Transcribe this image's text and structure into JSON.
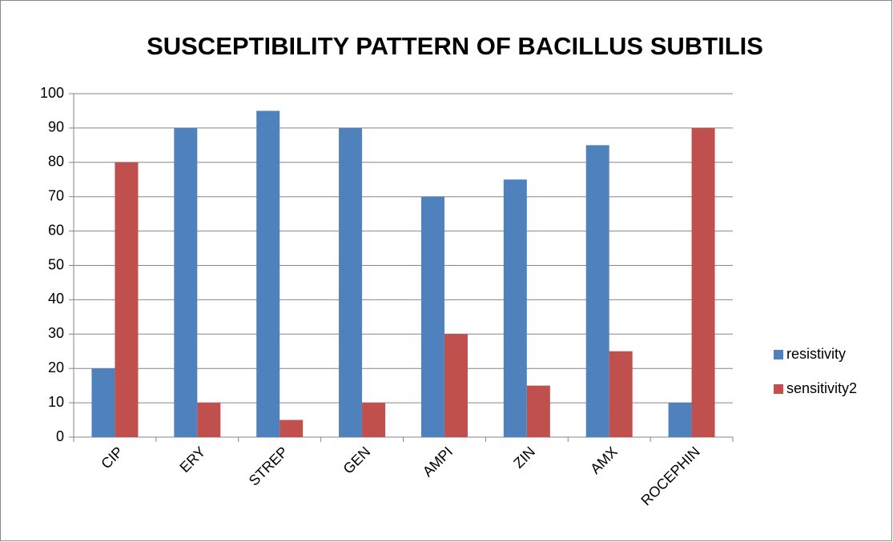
{
  "chart_data": {
    "type": "bar",
    "title": "SUSCEPTIBILITY PATTERN OF BACILLUS SUBTILIS",
    "categories": [
      "CIP",
      "ERY",
      "STREP",
      "GEN",
      "AMPI",
      "ZIN",
      "AMX",
      "ROCEPHIN"
    ],
    "series": [
      {
        "name": "resistivity",
        "color": "#4f81bd",
        "values": [
          20,
          90,
          95,
          90,
          70,
          75,
          85,
          10
        ]
      },
      {
        "name": "sensitivity2",
        "color": "#c0504d",
        "values": [
          80,
          10,
          5,
          10,
          30,
          15,
          25,
          90
        ]
      }
    ],
    "ylim": [
      0,
      100
    ],
    "yticks": [
      0,
      10,
      20,
      30,
      40,
      50,
      60,
      70,
      80,
      90,
      100
    ],
    "grid": true,
    "legend": "right"
  }
}
